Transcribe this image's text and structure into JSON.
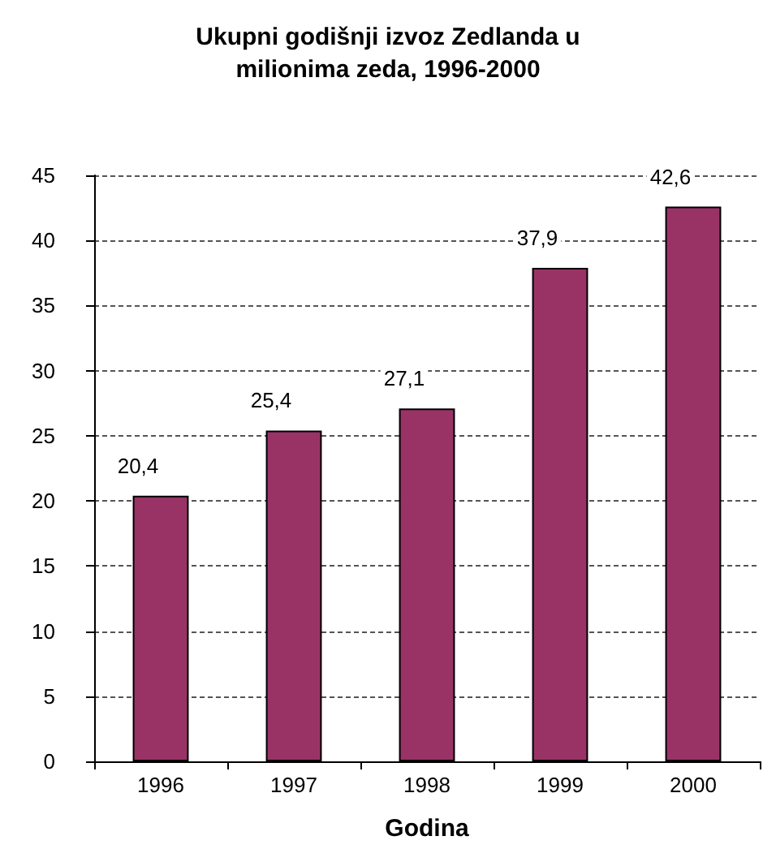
{
  "chart_data": {
    "type": "bar",
    "title": "Ukupni godišnji izvoz Zedlanda u\nmilionima zeda, 1996-2000",
    "xlabel": "Godina",
    "categories": [
      "1996",
      "1997",
      "1998",
      "1999",
      "2000"
    ],
    "values": [
      20.4,
      25.4,
      27.1,
      37.9,
      42.6
    ],
    "value_labels": [
      "20,4",
      "25,4",
      "27,1",
      "37,9",
      "42,6"
    ],
    "color": "#993366",
    "ylim": [
      0,
      45
    ],
    "yticks": [
      0,
      5,
      10,
      15,
      20,
      25,
      30,
      35,
      40,
      45
    ],
    "grid": "y"
  }
}
